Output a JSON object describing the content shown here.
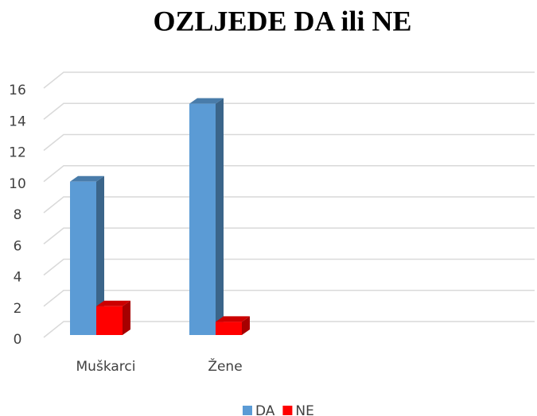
{
  "chart_data": {
    "type": "bar3d",
    "title": "OZLJEDE DA ili NE",
    "categories": [
      "Muškarci",
      "Žene"
    ],
    "series": [
      {
        "name": "DA",
        "color": "#5b9bd5",
        "values": [
          10,
          15
        ]
      },
      {
        "name": "NE",
        "color": "#ff0000",
        "values": [
          2,
          1
        ]
      }
    ],
    "ylim": [
      0,
      16
    ],
    "yticks": [
      0,
      2,
      4,
      6,
      8,
      10,
      12,
      14,
      16
    ],
    "grid": true,
    "legend": "bottom"
  }
}
